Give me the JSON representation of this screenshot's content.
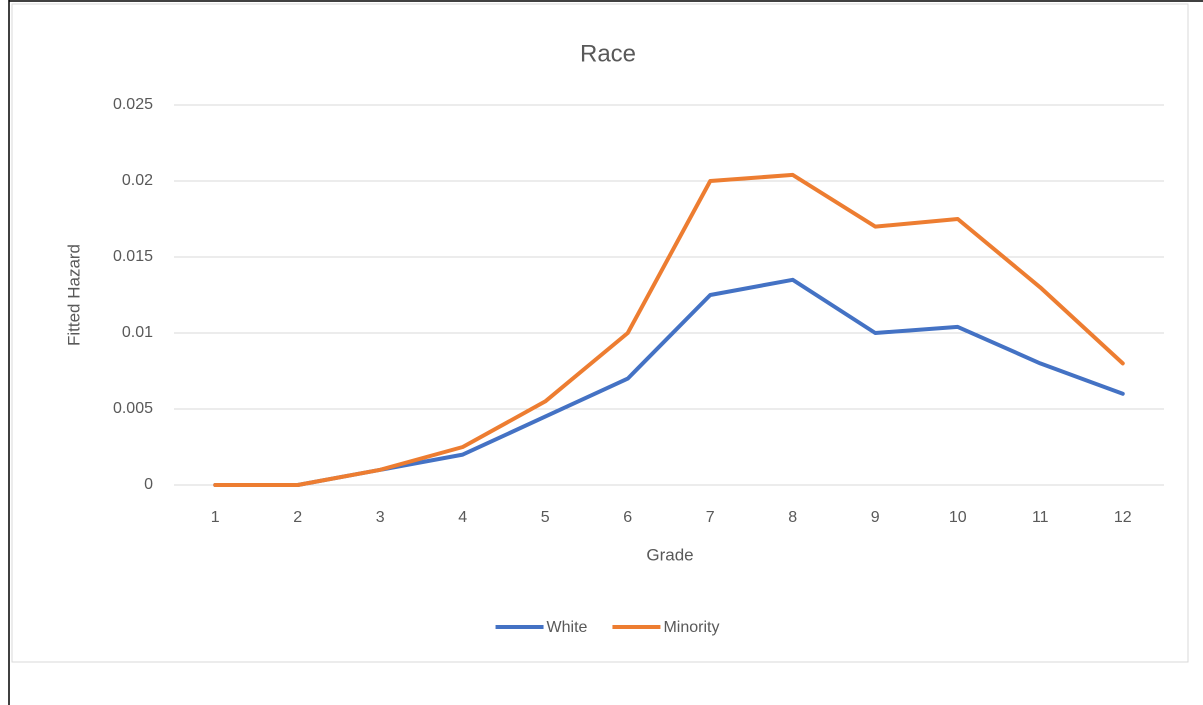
{
  "chart_data": {
    "type": "line",
    "title": "Race",
    "x_label": "Grade",
    "y_label": "Fitted Hazard",
    "categories": [
      "1",
      "2",
      "3",
      "4",
      "5",
      "6",
      "7",
      "8",
      "9",
      "10",
      "11",
      "12"
    ],
    "series": [
      {
        "name": "White",
        "color": "#4472c4",
        "values": [
          0,
          0,
          0.001,
          0.002,
          0.0045,
          0.007,
          0.0125,
          0.0135,
          0.01,
          0.0104,
          0.008,
          0.006
        ]
      },
      {
        "name": "Minority",
        "color": "#ed7d31",
        "values": [
          0,
          0,
          0.001,
          0.0025,
          0.0055,
          0.01,
          0.02,
          0.0204,
          0.017,
          0.0175,
          0.013,
          0.008
        ]
      }
    ],
    "ylim": [
      0,
      0.025
    ],
    "yticks": [
      0,
      0.005,
      0.01,
      0.015,
      0.02,
      0.025
    ],
    "grid": true,
    "legend": "bottom"
  }
}
